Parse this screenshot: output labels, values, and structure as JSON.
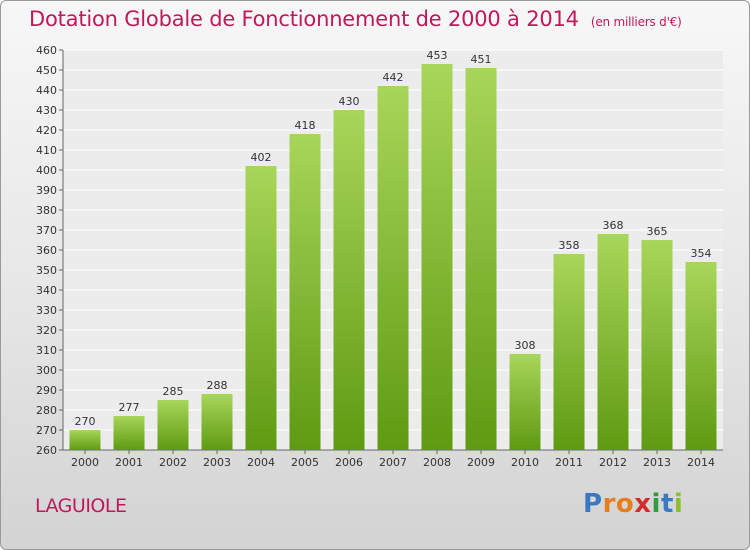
{
  "header": {
    "title": "Dotation Globale de Fonctionnement de 2000 à 2014",
    "unit": "(en milliers d'€)"
  },
  "footer": {
    "place": "LAGUIOLE",
    "logo_letters": [
      "P",
      "r",
      "o",
      "x",
      "i",
      "t",
      "i"
    ],
    "logo_colors": [
      "#3a78c2",
      "#e87d1e",
      "#e87d1e",
      "#d62c2c",
      "#2e9e3e",
      "#3a78c2",
      "#8cbe2e"
    ]
  },
  "colors": {
    "bar_top": "#a8d65a",
    "bar_bottom": "#5f9a12",
    "accent": "#c2185b"
  },
  "chart_data": {
    "type": "bar",
    "title": "Dotation Globale de Fonctionnement de 2000 à 2014",
    "subtitle": "(en milliers d'€)",
    "categories": [
      "2000",
      "2001",
      "2002",
      "2003",
      "2004",
      "2005",
      "2006",
      "2007",
      "2008",
      "2009",
      "2010",
      "2011",
      "2012",
      "2013",
      "2014"
    ],
    "values": [
      270,
      277,
      285,
      288,
      402,
      418,
      430,
      442,
      453,
      451,
      308,
      358,
      368,
      365,
      354
    ],
    "ylim": [
      260,
      460
    ],
    "yticks": [
      260,
      270,
      280,
      290,
      300,
      310,
      320,
      330,
      340,
      350,
      360,
      370,
      380,
      390,
      400,
      410,
      420,
      430,
      440,
      450,
      460
    ],
    "grid": true,
    "xlabel": "",
    "ylabel": ""
  }
}
